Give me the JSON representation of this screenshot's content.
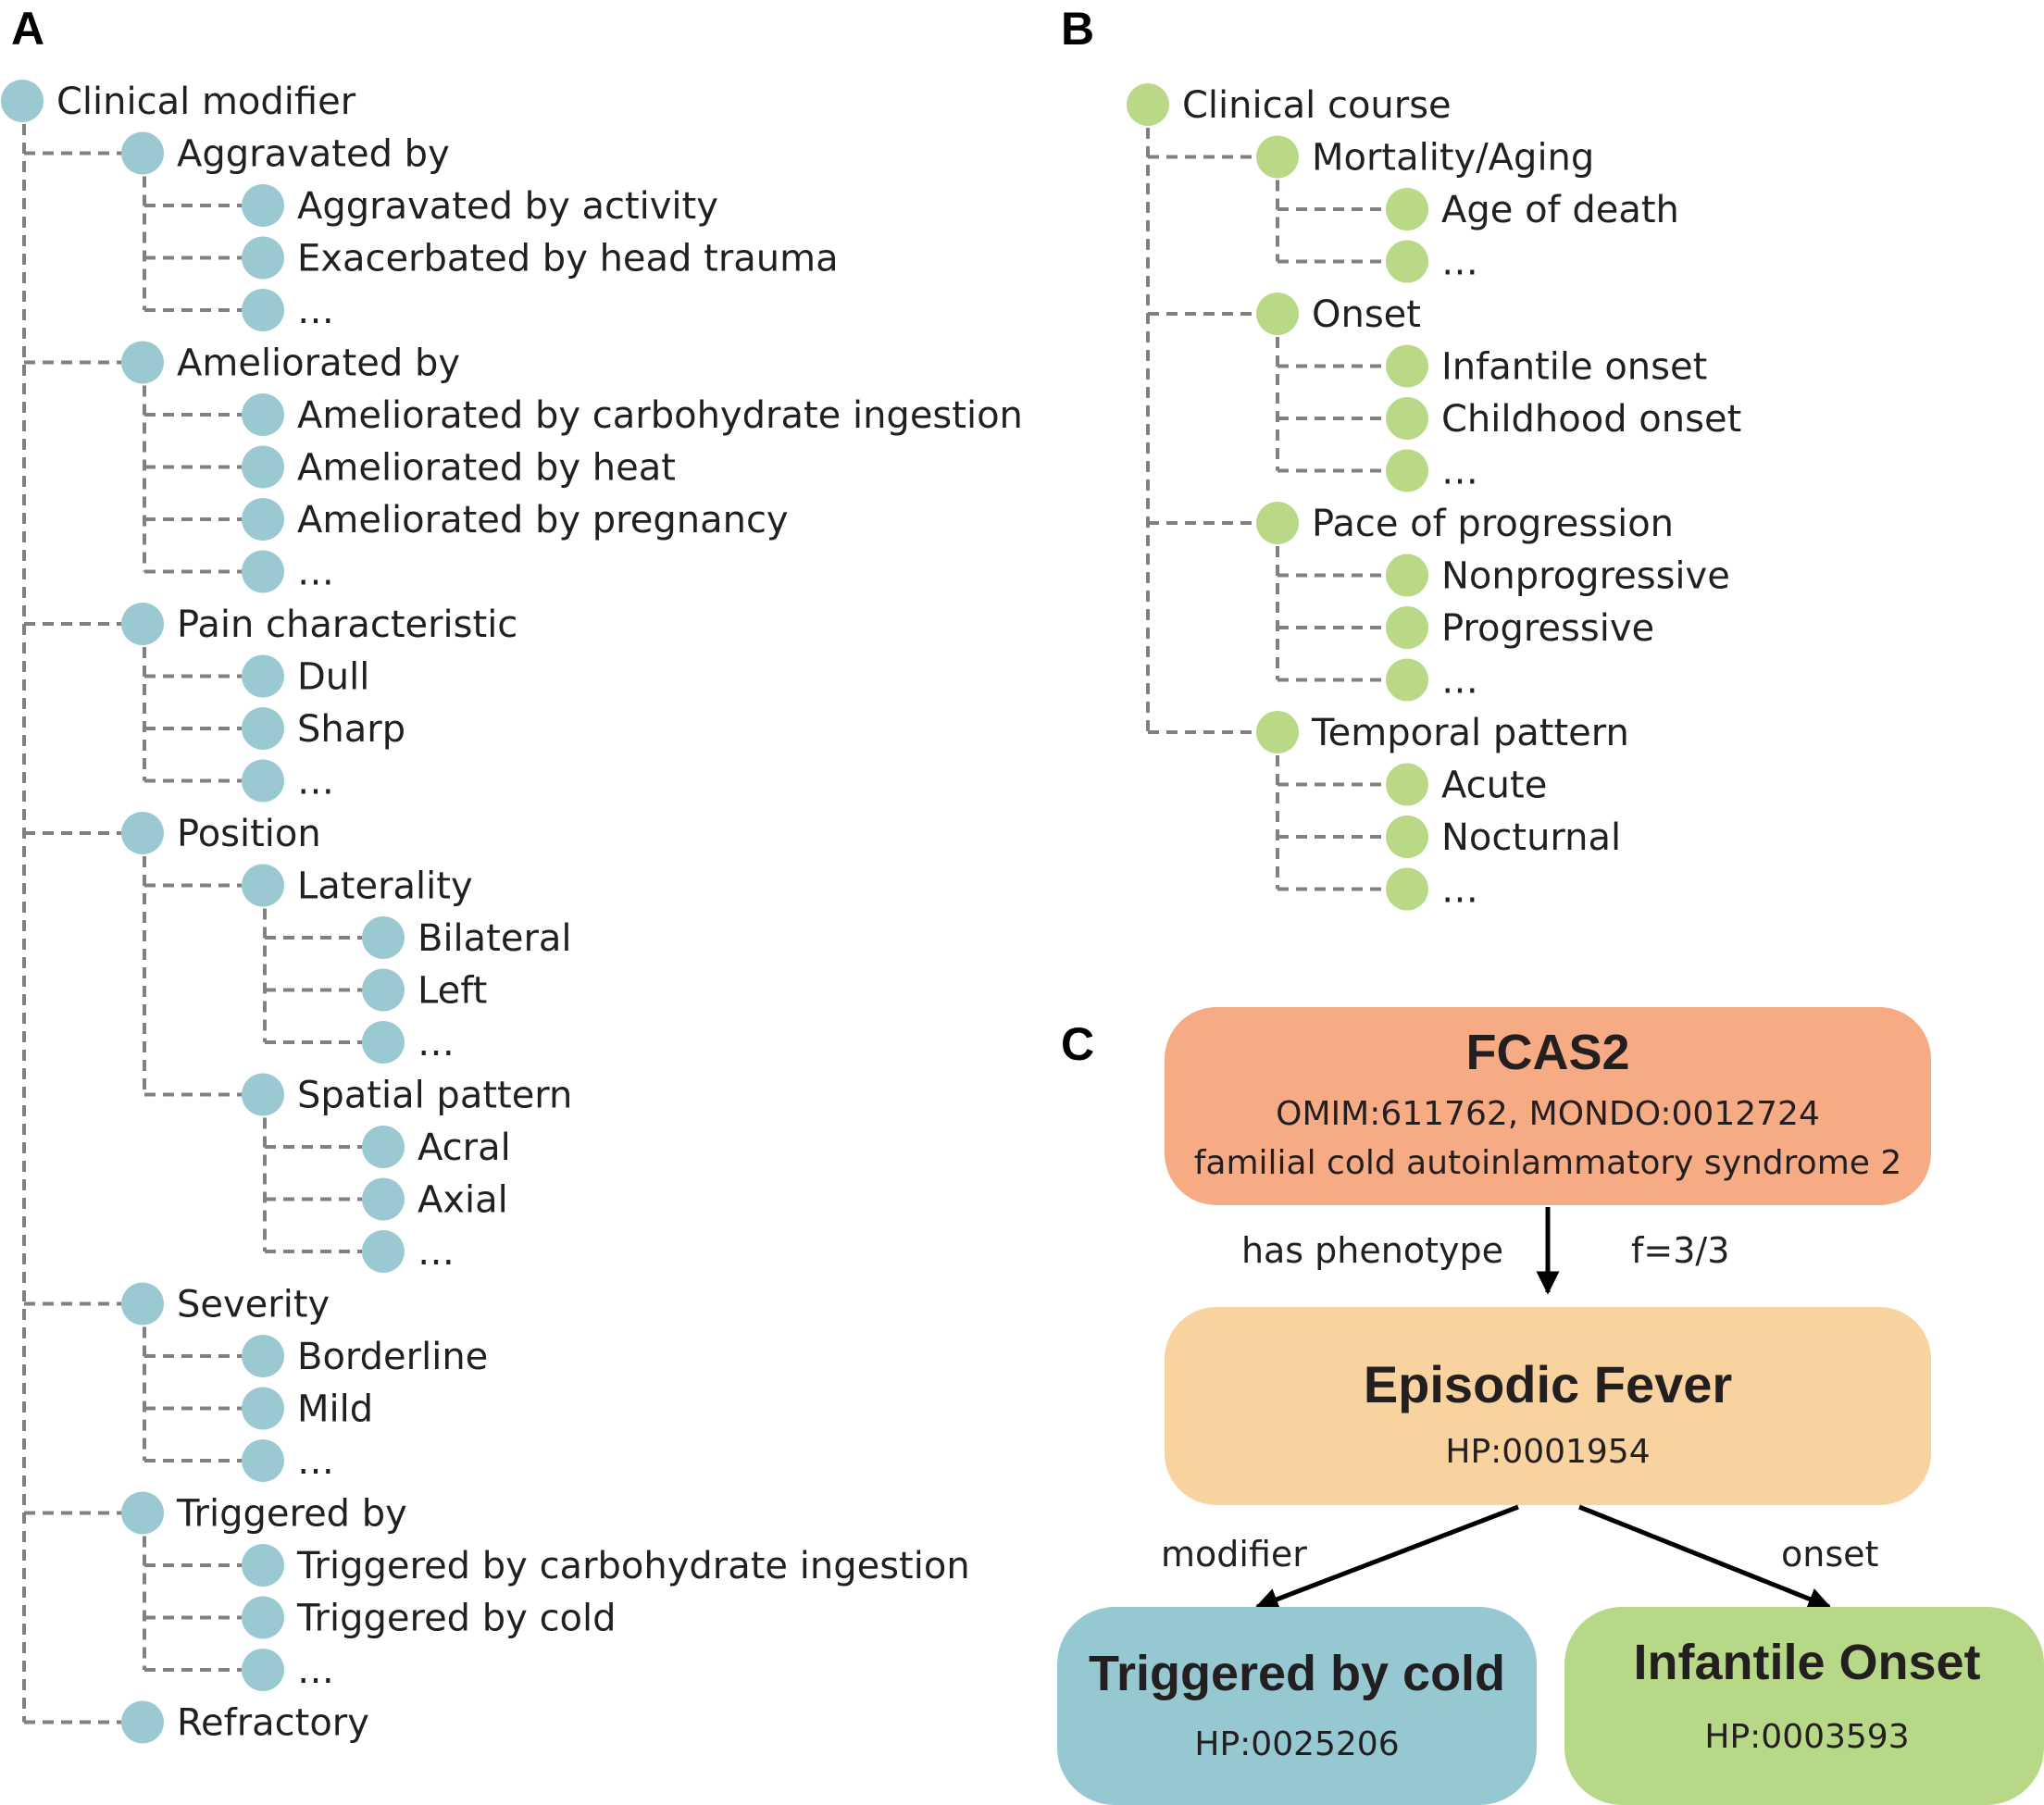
{
  "colors": {
    "tree_a_node": "#9bc9d1",
    "tree_b_node": "#b9d987",
    "connector": "#808080",
    "fcas2_box": "#f7ab84",
    "fever_box": "#f8d3a0",
    "cold_box": "#96c8d2",
    "onset_box": "#b7d886",
    "arrow": "#000000"
  },
  "panels": {
    "a": "A",
    "b": "B",
    "c": "C"
  },
  "tree_a": {
    "label": "Clinical modifier",
    "children": [
      {
        "label": "Aggravated by",
        "children": [
          {
            "label": "Aggravated by activity"
          },
          {
            "label": "Exacerbated by head trauma"
          },
          {
            "label": "…"
          }
        ]
      },
      {
        "label": "Ameliorated by",
        "children": [
          {
            "label": "Ameliorated by carbohydrate ingestion"
          },
          {
            "label": "Ameliorated by heat"
          },
          {
            "label": "Ameliorated by pregnancy"
          },
          {
            "label": "…"
          }
        ]
      },
      {
        "label": "Pain characteristic",
        "children": [
          {
            "label": "Dull"
          },
          {
            "label": "Sharp"
          },
          {
            "label": "…"
          }
        ]
      },
      {
        "label": "Position",
        "children": [
          {
            "label": "Laterality",
            "children": [
              {
                "label": "Bilateral"
              },
              {
                "label": "Left"
              },
              {
                "label": "…"
              }
            ]
          },
          {
            "label": "Spatial pattern",
            "children": [
              {
                "label": "Acral"
              },
              {
                "label": "Axial"
              },
              {
                "label": "…"
              }
            ]
          }
        ]
      },
      {
        "label": "Severity",
        "children": [
          {
            "label": "Borderline"
          },
          {
            "label": "Mild"
          },
          {
            "label": "…"
          }
        ]
      },
      {
        "label": "Triggered by",
        "children": [
          {
            "label": "Triggered by carbohydrate ingestion"
          },
          {
            "label": "Triggered by cold"
          },
          {
            "label": "…"
          }
        ]
      },
      {
        "label": "Refractory"
      }
    ]
  },
  "tree_b": {
    "label": "Clinical course",
    "children": [
      {
        "label": "Mortality/Aging",
        "children": [
          {
            "label": "Age of death"
          },
          {
            "label": "…"
          }
        ]
      },
      {
        "label": "Onset",
        "children": [
          {
            "label": "Infantile onset"
          },
          {
            "label": "Childhood onset"
          },
          {
            "label": "…"
          }
        ]
      },
      {
        "label": "Pace of progression",
        "children": [
          {
            "label": "Nonprogressive"
          },
          {
            "label": "Progressive"
          },
          {
            "label": "…"
          }
        ]
      },
      {
        "label": "Temporal pattern",
        "children": [
          {
            "label": "Acute"
          },
          {
            "label": "Nocturnal"
          },
          {
            "label": "…"
          }
        ]
      }
    ]
  },
  "panel_c": {
    "disease": {
      "title": "FCAS2",
      "ids": "OMIM:611762, MONDO:0012724",
      "name": "familial cold autoinlammatory syndrome 2"
    },
    "edge_main": {
      "label": "has phenotype",
      "frequency": "f=3/3"
    },
    "phenotype": {
      "title": "Episodic Fever",
      "id": "HP:0001954"
    },
    "edge_left": "modifier",
    "edge_right": "onset",
    "modifier_term": {
      "title": "Triggered by cold",
      "id": "HP:0025206"
    },
    "onset_term": {
      "title": "Infantile Onset",
      "id": "HP:0003593"
    }
  }
}
